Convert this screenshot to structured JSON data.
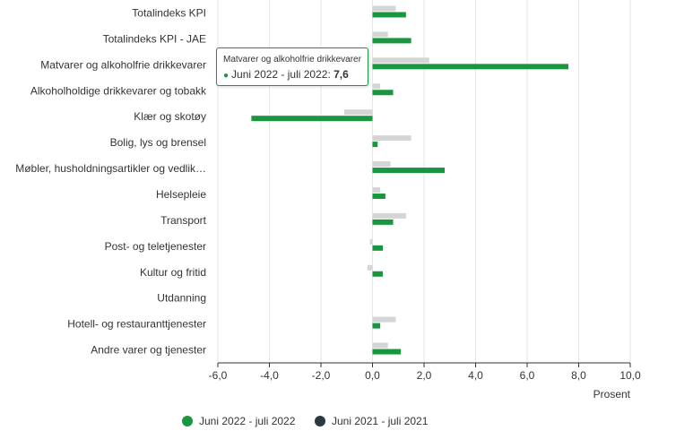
{
  "chart_data": {
    "type": "bar",
    "orientation": "horizontal",
    "categories": [
      "Totalindeks KPI",
      "Totalindeks KPI - JAE",
      "Matvarer og alkoholfrie drikkevarer",
      "Alkoholholdige drikkevarer og tobakk",
      "Klær og skotøy",
      "Bolig, lys og brensel",
      "Møbler, husholdningsartikler og vedlik…",
      "Helsepleie",
      "Transport",
      "Post- og teletjenester",
      "Kultur og fritid",
      "Utdanning",
      "Hotell- og restauranttjenester",
      "Andre varer og tjenester"
    ],
    "series": [
      {
        "name": "Juni 2022 - juli 2022",
        "color": "#1a9641",
        "values": [
          1.3,
          1.5,
          7.6,
          0.8,
          -4.7,
          0.2,
          2.8,
          0.5,
          0.8,
          0.4,
          0.4,
          0.0,
          0.3,
          1.1
        ]
      },
      {
        "name": "Juni 2021 - juli 2021",
        "color": "#d4d6d6",
        "legend_color": "#2b3a42",
        "values": [
          0.9,
          0.6,
          2.2,
          0.3,
          -1.1,
          1.5,
          0.7,
          0.3,
          1.3,
          -0.1,
          -0.2,
          0.0,
          0.9,
          0.6
        ]
      }
    ],
    "xlim": [
      -6,
      10
    ],
    "ticks": [
      "-6,0",
      "-4,0",
      "-2,0",
      "0,0",
      "2,0",
      "4,0",
      "6,0",
      "8,0",
      "10,0"
    ],
    "tick_values": [
      -6,
      -4,
      -2,
      0,
      2,
      4,
      6,
      8,
      10
    ],
    "xlabel": "Prosent",
    "grid": true,
    "legend_position": "bottom-center"
  },
  "tooltip": {
    "category": "Matvarer og alkoholfrie drikkevarer",
    "series_label": "Juni 2022 - juli 2022: ",
    "value": "7,6"
  }
}
